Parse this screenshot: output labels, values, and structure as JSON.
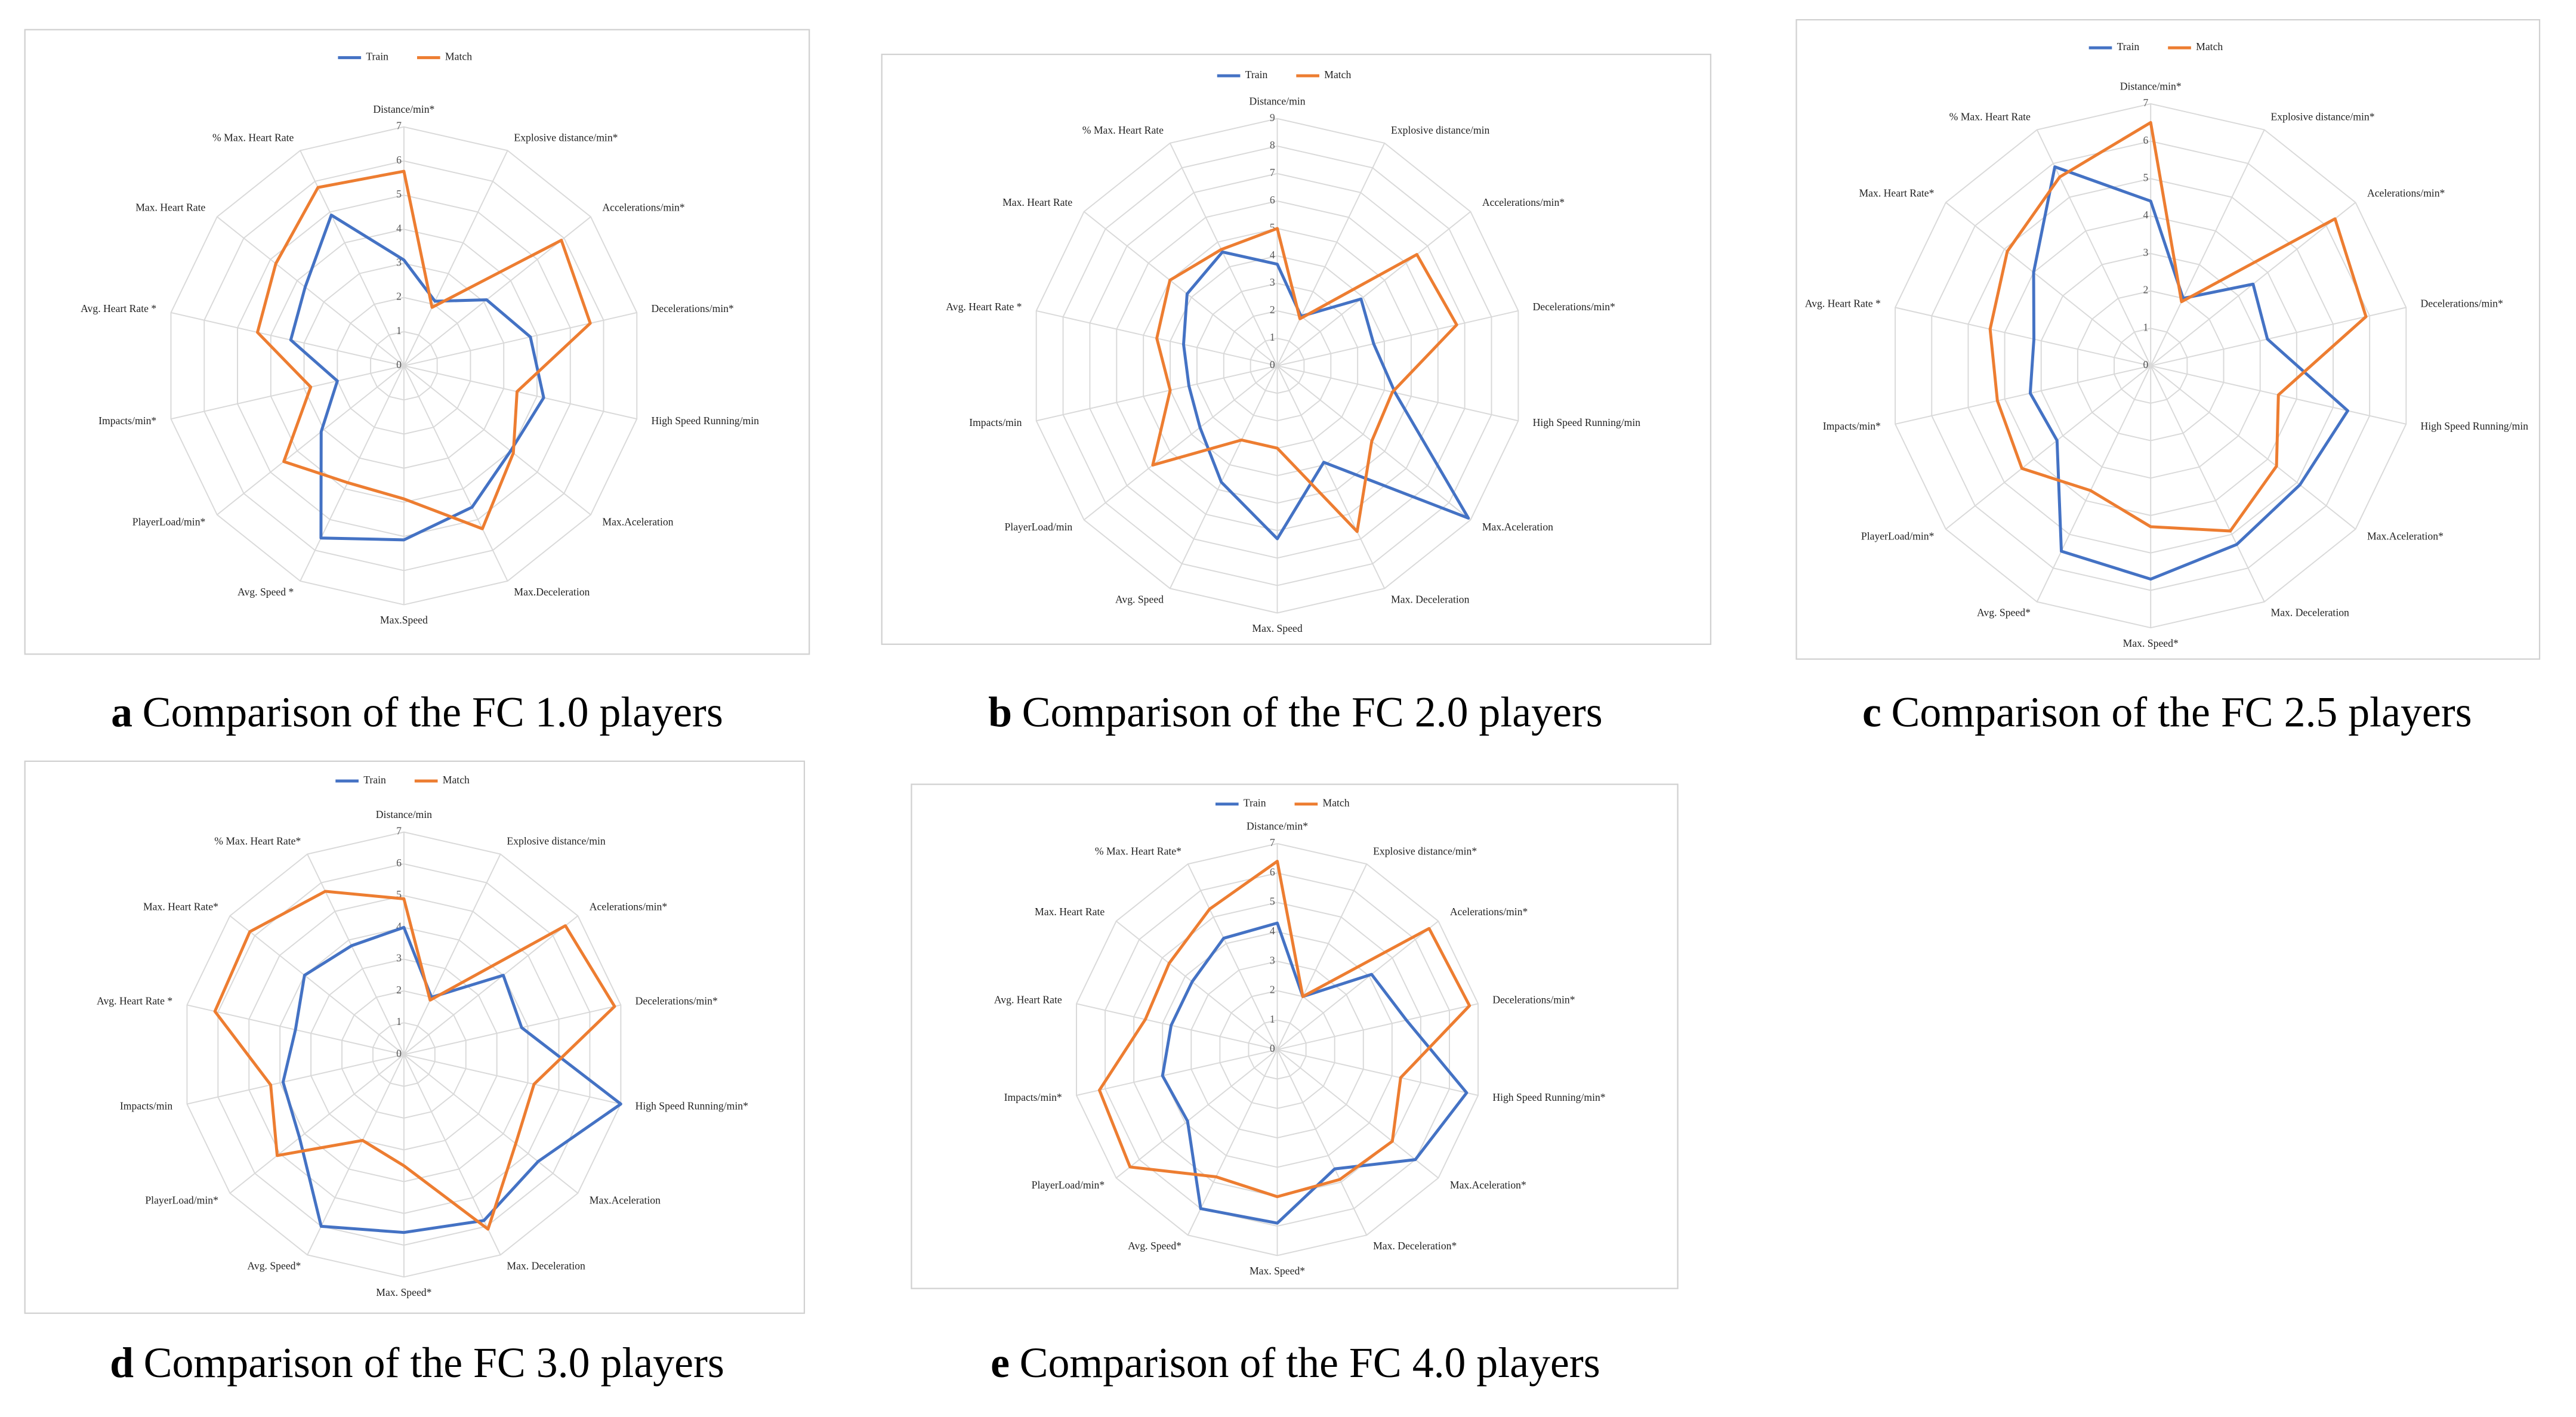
{
  "chart_data": [
    {
      "type": "radar",
      "caption_label": "a",
      "caption": "Comparison of the FC 1.0 players",
      "categories": [
        "Distance/min*",
        "Explosive distance/min*",
        "Accelerations/min*",
        "Decelerations/min*",
        "High Speed Running/min",
        "Max.Aceleration",
        "Max.Deceleration",
        "Max.Speed",
        "Avg. Speed *",
        "PlayerLoad/min*",
        "Impacts/min*",
        "Avg. Heart Rate *",
        "Max. Heart Rate",
        "% Max. Heart Rate"
      ],
      "rlim": [
        0,
        7
      ],
      "rticks": [
        0,
        1,
        2,
        3,
        4,
        5,
        6,
        7
      ],
      "grid": true,
      "series": [
        {
          "name": "Train",
          "color": "#4472c4",
          "values": [
            3.1,
            2.1,
            3.1,
            3.8,
            4.2,
            4.0,
            4.6,
            5.1,
            5.6,
            3.1,
            2.0,
            3.4,
            3.7,
            4.9
          ]
        },
        {
          "name": "Match",
          "color": "#ed7d31",
          "values": [
            5.7,
            1.9,
            5.9,
            5.6,
            3.4,
            4.1,
            5.3,
            3.9,
            3.8,
            4.5,
            2.8,
            4.4,
            4.8,
            5.8
          ]
        }
      ]
    },
    {
      "type": "radar",
      "caption_label": "b",
      "caption": "Comparison of the FC 2.0 players",
      "categories": [
        "Distance/min",
        "Explosive distance/min",
        "Accelerations/min*",
        "Decelerations/min*",
        "High Speed Running/min",
        "Max.Aceleration",
        "Max. Deceleration",
        "Max. Speed",
        "Avg. Speed",
        "PlayerLoad/min",
        "Impacts/min",
        "Avg. Heart Rate *",
        "Max. Heart Rate",
        "% Max. Heart Rate"
      ],
      "rlim": [
        0,
        9
      ],
      "rticks": [
        0,
        1,
        2,
        3,
        4,
        5,
        6,
        7,
        8,
        9
      ],
      "grid": true,
      "series": [
        {
          "name": "Train",
          "color": "#4472c4",
          "values": [
            3.7,
            2.0,
            3.9,
            3.6,
            4.4,
            8.9,
            3.9,
            6.3,
            4.7,
            3.6,
            3.3,
            3.5,
            4.2,
            4.6
          ]
        },
        {
          "name": "Match",
          "color": "#ed7d31",
          "values": [
            5.0,
            1.9,
            6.5,
            6.7,
            4.3,
            4.4,
            6.7,
            3.0,
            3.0,
            5.8,
            4.0,
            4.5,
            5.0,
            4.7
          ]
        }
      ]
    },
    {
      "type": "radar",
      "caption_label": "c",
      "caption": "Comparison of the FC 2.5 players",
      "categories": [
        "Distance/min*",
        "Explosive distance/min*",
        "Acelerations/min*",
        "Decelerations/min*",
        "High Speed Running/min",
        "Max.Aceleration*",
        "Max. Deceleration",
        "Max. Speed*",
        "Avg. Speed*",
        "PlayerLoad/min*",
        "Impacts/min*",
        "Avg. Heart Rate *",
        "Max. Heart Rate*",
        "% Max. Heart Rate"
      ],
      "rlim": [
        0,
        7
      ],
      "rticks": [
        0,
        1,
        2,
        3,
        4,
        5,
        6,
        7
      ],
      "grid": true,
      "series": [
        {
          "name": "Train",
          "color": "#4472c4",
          "values": [
            4.4,
            2.0,
            3.5,
            3.2,
            5.4,
            5.1,
            5.3,
            5.7,
            5.5,
            3.2,
            3.3,
            3.2,
            4.0,
            5.9
          ]
        },
        {
          "name": "Match",
          "color": "#ed7d31",
          "values": [
            6.5,
            1.9,
            6.3,
            5.9,
            3.5,
            4.3,
            4.9,
            4.3,
            3.7,
            4.4,
            4.2,
            4.4,
            4.9,
            5.6
          ]
        }
      ]
    },
    {
      "type": "radar",
      "caption_label": "d",
      "caption": "Comparison of the FC 3.0 players",
      "categories": [
        "Distance/min",
        "Explosive distance/min",
        "Acelerations/min*",
        "Decelerations/min*",
        "High Speed Running/min*",
        "Max.Aceleration",
        "Max. Deceleration",
        "Max. Speed*",
        "Avg. Speed*",
        "PlayerLoad/min*",
        "Impacts/min",
        "Avg. Heart Rate *",
        "Max. Heart Rate*",
        "% Max. Heart Rate*"
      ],
      "rlim": [
        0,
        7
      ],
      "rticks": [
        0,
        1,
        2,
        3,
        4,
        5,
        6,
        7
      ],
      "grid": true,
      "series": [
        {
          "name": "Train",
          "color": "#4472c4",
          "values": [
            4.0,
            2.0,
            4.0,
            3.8,
            7.0,
            5.4,
            5.8,
            5.6,
            6.0,
            4.2,
            3.9,
            3.5,
            4.0,
            3.8
          ]
        },
        {
          "name": "Match",
          "color": "#ed7d31",
          "values": [
            4.9,
            1.9,
            6.5,
            6.8,
            4.2,
            4.5,
            6.1,
            3.5,
            3.0,
            5.1,
            4.3,
            6.1,
            6.2,
            5.7
          ]
        }
      ]
    },
    {
      "type": "radar",
      "caption_label": "e",
      "caption": "Comparison of the FC 4.0 players",
      "categories": [
        "Distance/min*",
        "Explosive distance/min*",
        "Acelerations/min*",
        "Decelerations/min*",
        "High Speed Running/min*",
        "Max.Aceleration*",
        "Max. Deceleration*",
        "Max. Speed*",
        "Avg. Speed*",
        "PlayerLoad/min*",
        "Impacts/min*",
        "Avg. Heart Rate",
        "Max. Heart Rate",
        "% Max. Heart Rate*"
      ],
      "rlim": [
        0,
        7
      ],
      "rticks": [
        0,
        1,
        2,
        3,
        4,
        5,
        6,
        7
      ],
      "grid": true,
      "series": [
        {
          "name": "Train",
          "color": "#4472c4",
          "values": [
            4.3,
            2.0,
            4.1,
            4.5,
            6.6,
            6.0,
            4.5,
            5.9,
            6.0,
            3.9,
            4.0,
            3.7,
            3.7,
            4.2
          ]
        },
        {
          "name": "Match",
          "color": "#ed7d31",
          "values": [
            6.4,
            2.0,
            6.6,
            6.7,
            4.3,
            5.0,
            4.9,
            5.0,
            4.8,
            6.4,
            6.2,
            4.6,
            4.7,
            5.3
          ]
        }
      ]
    }
  ]
}
